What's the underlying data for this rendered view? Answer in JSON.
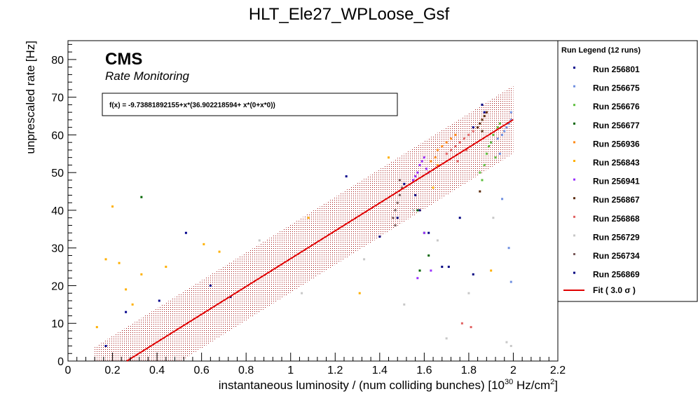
{
  "chart_data": {
    "type": "scatter",
    "title": "HLT_Ele27_WPLoose_Gsf",
    "xlabel": "instantaneous luminosity / (num colliding bunches) [10",
    "xlabel_sup": "30",
    "xlabel_unit": " Hz/cm",
    "xlabel_sup2": "2",
    "xlabel_close": "]",
    "ylabel": "unprescaled rate [Hz]",
    "xlim": [
      0,
      2.2
    ],
    "ylim": [
      0,
      85
    ],
    "x_ticks": [
      0,
      0.2,
      0.4,
      0.6,
      0.8,
      1,
      1.2,
      1.4,
      1.6,
      1.8,
      2,
      2.2
    ],
    "x_tick_labels": [
      "0",
      "0.2",
      "0.4",
      "0.6",
      "0.8",
      "1",
      "1.2",
      "1.4",
      "1.6",
      "1.8",
      "2",
      "2.2"
    ],
    "y_ticks": [
      0,
      10,
      20,
      30,
      40,
      50,
      60,
      70,
      80
    ],
    "y_tick_labels": [
      "0",
      "10",
      "20",
      "30",
      "40",
      "50",
      "60",
      "70",
      "80"
    ],
    "grid": false,
    "legend_position": "right",
    "cms_label": "CMS",
    "cms_sublabel": "Rate Monitoring",
    "fit": {
      "formula_text": "f(x) = -9.73881892155+x*(36.902218594+ x*(0+x*0))",
      "intercept": -9.73881892155,
      "slope": 36.902218594,
      "x_range": [
        0.12,
        2.0
      ],
      "band_sigma": 3.0,
      "band_halfwidth": 9.0,
      "color": "#e00000"
    },
    "legend": {
      "title": "Run Legend (12 runs)",
      "fit_label": "Fit ( 3.0  σ )"
    },
    "series": [
      {
        "name": "Run 256801",
        "color": "#00008b",
        "x": [
          0.17,
          0.26,
          0.41,
          0.53,
          0.64,
          1.25,
          1.82,
          1.86,
          1.87
        ],
        "y": [
          4,
          13,
          16,
          34,
          20,
          49,
          62,
          68,
          66
        ]
      },
      {
        "name": "Run 256675",
        "color": "#6f8fe0",
        "x": [
          1.9,
          1.93,
          1.95,
          1.96,
          1.97,
          1.98,
          1.99,
          1.99,
          1.95,
          1.98,
          1.99,
          1.94
        ],
        "y": [
          58,
          59,
          60,
          61,
          62,
          63,
          64,
          66,
          43,
          30,
          21,
          55
        ]
      },
      {
        "name": "Run 256676",
        "color": "#5fbf3f",
        "x": [
          1.85,
          1.87,
          1.88,
          1.89,
          1.9,
          1.91,
          1.93,
          1.94,
          1.86,
          1.92
        ],
        "y": [
          50,
          52,
          55,
          57,
          58,
          60,
          62,
          63,
          48,
          54
        ]
      },
      {
        "name": "Run 256677",
        "color": "#006400",
        "x": [
          0.33,
          1.57,
          1.6,
          1.62,
          1.58
        ],
        "y": [
          43.5,
          40,
          34,
          28,
          24
        ]
      },
      {
        "name": "Run 256936",
        "color": "#ff8c1a",
        "x": [
          1.63,
          1.65,
          1.66,
          1.68,
          1.7,
          1.72,
          1.74,
          1.66,
          1.62
        ],
        "y": [
          53,
          54,
          56,
          57,
          58,
          59,
          60,
          52,
          50
        ]
      },
      {
        "name": "Run 256843",
        "color": "#ffb000",
        "x": [
          0.13,
          0.17,
          0.2,
          0.23,
          0.26,
          0.29,
          0.33,
          0.44,
          0.61,
          0.68,
          1.08,
          1.44,
          1.31,
          1.9,
          1.64
        ],
        "y": [
          9,
          27,
          41,
          26,
          19,
          15,
          23,
          25,
          31,
          29,
          38,
          54,
          18,
          24,
          46
        ]
      },
      {
        "name": "Run 256941",
        "color": "#9b30ff",
        "x": [
          1.55,
          1.56,
          1.57,
          1.58,
          1.59,
          1.6,
          1.61,
          1.62,
          1.57,
          1.6,
          1.63
        ],
        "y": [
          48,
          49,
          50,
          52,
          53,
          54,
          51,
          50,
          22,
          34,
          24
        ]
      },
      {
        "name": "Run 256867",
        "color": "#5a2a0a",
        "x": [
          1.84,
          1.85,
          1.86,
          1.87,
          1.88,
          1.86,
          1.85
        ],
        "y": [
          62,
          63,
          64,
          65,
          66,
          61,
          45
        ]
      },
      {
        "name": "Run 256868",
        "color": "#e06060",
        "x": [
          1.7,
          1.72,
          1.74,
          1.76,
          1.78,
          1.8,
          1.82,
          1.75,
          1.79,
          1.77,
          1.81
        ],
        "y": [
          55,
          56,
          57,
          58,
          59,
          60,
          61,
          53,
          56,
          10,
          9
        ]
      },
      {
        "name": "Run 256729",
        "color": "#c8c8c8",
        "x": [
          0.86,
          1.05,
          1.33,
          1.51,
          1.55,
          1.7,
          1.8,
          1.97,
          1.99,
          1.66,
          1.91
        ],
        "y": [
          32,
          18,
          27,
          15,
          40,
          6,
          18,
          5,
          4,
          32,
          38
        ]
      },
      {
        "name": "Run 256734",
        "color": "#7a5a5a",
        "x": [
          1.46,
          1.47,
          1.48,
          1.49,
          1.5,
          1.47,
          1.49
        ],
        "y": [
          38,
          40,
          42,
          44,
          46,
          36,
          48
        ]
      },
      {
        "name": "Run 256869",
        "color": "#000080",
        "x": [
          0.73,
          1.4,
          1.48,
          1.51,
          1.56,
          1.58,
          1.62,
          1.68,
          1.71,
          1.76,
          1.82,
          1.86
        ],
        "y": [
          17,
          33,
          38,
          47,
          44,
          40,
          34,
          25,
          25,
          38,
          23,
          68
        ]
      }
    ]
  }
}
